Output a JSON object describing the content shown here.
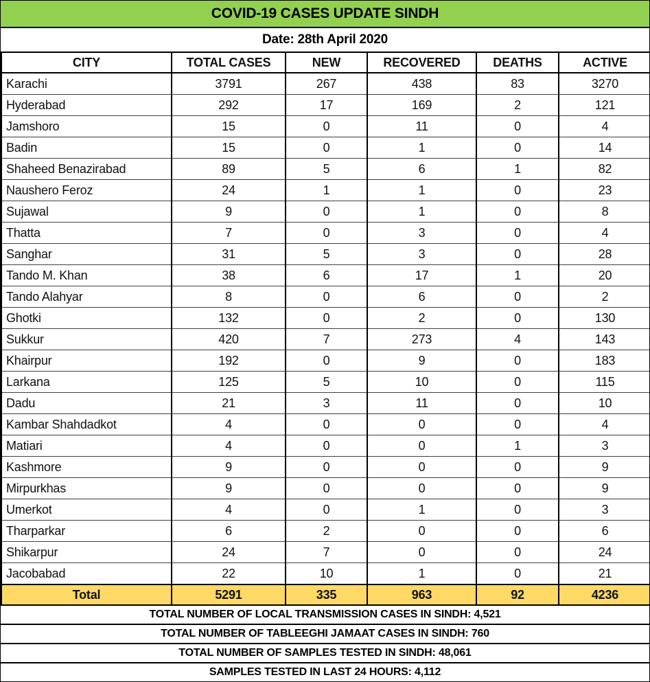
{
  "title": "COVID-19 CASES UPDATE SINDH",
  "date_line": "Date: 28th April 2020",
  "colors": {
    "title_band_green": "#92D050",
    "total_row_gold": "#FFD966",
    "grid_black": "#000000",
    "text_black": "#111111"
  },
  "table": {
    "columns": [
      "CITY",
      "TOTAL CASES",
      "NEW",
      "RECOVERED",
      "DEATHS",
      "ACTIVE"
    ],
    "rows": [
      [
        "Karachi",
        "3791",
        "267",
        "438",
        "83",
        "3270"
      ],
      [
        "Hyderabad",
        "292",
        "17",
        "169",
        "2",
        "121"
      ],
      [
        "Jamshoro",
        "15",
        "0",
        "11",
        "0",
        "4"
      ],
      [
        "Badin",
        "15",
        "0",
        "1",
        "0",
        "14"
      ],
      [
        "Shaheed Benazirabad",
        "89",
        "5",
        "6",
        "1",
        "82"
      ],
      [
        "Naushero Feroz",
        "24",
        "1",
        "1",
        "0",
        "23"
      ],
      [
        "Sujawal",
        "9",
        "0",
        "1",
        "0",
        "8"
      ],
      [
        "Thatta",
        "7",
        "0",
        "3",
        "0",
        "4"
      ],
      [
        "Sanghar",
        "31",
        "5",
        "3",
        "0",
        "28"
      ],
      [
        "Tando M. Khan",
        "38",
        "6",
        "17",
        "1",
        "20"
      ],
      [
        "Tando Alahyar",
        "8",
        "0",
        "6",
        "0",
        "2"
      ],
      [
        "Ghotki",
        "132",
        "0",
        "2",
        "0",
        "130"
      ],
      [
        "Sukkur",
        "420",
        "7",
        "273",
        "4",
        "143"
      ],
      [
        "Khairpur",
        "192",
        "0",
        "9",
        "0",
        "183"
      ],
      [
        "Larkana",
        "125",
        "5",
        "10",
        "0",
        "115"
      ],
      [
        "Dadu",
        "21",
        "3",
        "11",
        "0",
        "10"
      ],
      [
        "Kambar Shahdadkot",
        "4",
        "0",
        "0",
        "0",
        "4"
      ],
      [
        "Matiari",
        "4",
        "0",
        "0",
        "1",
        "3"
      ],
      [
        "Kashmore",
        "9",
        "0",
        "0",
        "0",
        "9"
      ],
      [
        "Mirpurkhas",
        "9",
        "0",
        "0",
        "0",
        "9"
      ],
      [
        "Umerkot",
        "4",
        "0",
        "1",
        "0",
        "3"
      ],
      [
        "Tharparkar",
        "6",
        "2",
        "0",
        "0",
        "6"
      ],
      [
        "Shikarpur",
        "24",
        "7",
        "0",
        "0",
        "24"
      ],
      [
        "Jacobabad",
        "22",
        "10",
        "1",
        "0",
        "21"
      ]
    ],
    "total_row": [
      "Total",
      "5291",
      "335",
      "963",
      "92",
      "4236"
    ]
  },
  "summaries": [
    {
      "name": "local-transmission",
      "text": "TOTAL NUMBER OF LOCAL TRANSMISSION CASES IN SINDH: 4,521"
    },
    {
      "name": "tableeghi-jamaat",
      "text": "TOTAL NUMBER OF TABLEEGHI JAMAAT CASES IN SINDH: 760"
    },
    {
      "name": "samples-tested-total",
      "text": "TOTAL NUMBER OF SAMPLES TESTED IN SINDH: 48,061"
    },
    {
      "name": "samples-tested-24h",
      "text": "SAMPLES TESTED IN LAST 24 HOURS: 4,112"
    }
  ],
  "chart_data": {
    "type": "table",
    "title": "COVID-19 CASES UPDATE SINDH",
    "subtitle": "Date: 28th April 2020",
    "columns": [
      "CITY",
      "TOTAL CASES",
      "NEW",
      "RECOVERED",
      "DEATHS",
      "ACTIVE"
    ],
    "rows": [
      {
        "city": "Karachi",
        "total_cases": 3791,
        "new": 267,
        "recovered": 438,
        "deaths": 83,
        "active": 3270
      },
      {
        "city": "Hyderabad",
        "total_cases": 292,
        "new": 17,
        "recovered": 169,
        "deaths": 2,
        "active": 121
      },
      {
        "city": "Jamshoro",
        "total_cases": 15,
        "new": 0,
        "recovered": 11,
        "deaths": 0,
        "active": 4
      },
      {
        "city": "Badin",
        "total_cases": 15,
        "new": 0,
        "recovered": 1,
        "deaths": 0,
        "active": 14
      },
      {
        "city": "Shaheed Benazirabad",
        "total_cases": 89,
        "new": 5,
        "recovered": 6,
        "deaths": 1,
        "active": 82
      },
      {
        "city": "Naushero Feroz",
        "total_cases": 24,
        "new": 1,
        "recovered": 1,
        "deaths": 0,
        "active": 23
      },
      {
        "city": "Sujawal",
        "total_cases": 9,
        "new": 0,
        "recovered": 1,
        "deaths": 0,
        "active": 8
      },
      {
        "city": "Thatta",
        "total_cases": 7,
        "new": 0,
        "recovered": 3,
        "deaths": 0,
        "active": 4
      },
      {
        "city": "Sanghar",
        "total_cases": 31,
        "new": 5,
        "recovered": 3,
        "deaths": 0,
        "active": 28
      },
      {
        "city": "Tando M. Khan",
        "total_cases": 38,
        "new": 6,
        "recovered": 17,
        "deaths": 1,
        "active": 20
      },
      {
        "city": "Tando Alahyar",
        "total_cases": 8,
        "new": 0,
        "recovered": 6,
        "deaths": 0,
        "active": 2
      },
      {
        "city": "Ghotki",
        "total_cases": 132,
        "new": 0,
        "recovered": 2,
        "deaths": 0,
        "active": 130
      },
      {
        "city": "Sukkur",
        "total_cases": 420,
        "new": 7,
        "recovered": 273,
        "deaths": 4,
        "active": 143
      },
      {
        "city": "Khairpur",
        "total_cases": 192,
        "new": 0,
        "recovered": 9,
        "deaths": 0,
        "active": 183
      },
      {
        "city": "Larkana",
        "total_cases": 125,
        "new": 5,
        "recovered": 10,
        "deaths": 0,
        "active": 115
      },
      {
        "city": "Dadu",
        "total_cases": 21,
        "new": 3,
        "recovered": 11,
        "deaths": 0,
        "active": 10
      },
      {
        "city": "Kambar Shahdadkot",
        "total_cases": 4,
        "new": 0,
        "recovered": 0,
        "deaths": 0,
        "active": 4
      },
      {
        "city": "Matiari",
        "total_cases": 4,
        "new": 0,
        "recovered": 0,
        "deaths": 1,
        "active": 3
      },
      {
        "city": "Kashmore",
        "total_cases": 9,
        "new": 0,
        "recovered": 0,
        "deaths": 0,
        "active": 9
      },
      {
        "city": "Mirpurkhas",
        "total_cases": 9,
        "new": 0,
        "recovered": 0,
        "deaths": 0,
        "active": 9
      },
      {
        "city": "Umerkot",
        "total_cases": 4,
        "new": 0,
        "recovered": 1,
        "deaths": 0,
        "active": 3
      },
      {
        "city": "Tharparkar",
        "total_cases": 6,
        "new": 2,
        "recovered": 0,
        "deaths": 0,
        "active": 6
      },
      {
        "city": "Shikarpur",
        "total_cases": 24,
        "new": 7,
        "recovered": 0,
        "deaths": 0,
        "active": 24
      },
      {
        "city": "Jacobabad",
        "total_cases": 22,
        "new": 10,
        "recovered": 1,
        "deaths": 0,
        "active": 21
      }
    ],
    "totals": {
      "total_cases": 5291,
      "new": 335,
      "recovered": 963,
      "deaths": 92,
      "active": 4236
    },
    "annotations": {
      "local_transmission_cases": 4521,
      "tableeghi_jamaat_cases": 760,
      "samples_tested_total": 48061,
      "samples_tested_last_24h": 4112
    }
  }
}
